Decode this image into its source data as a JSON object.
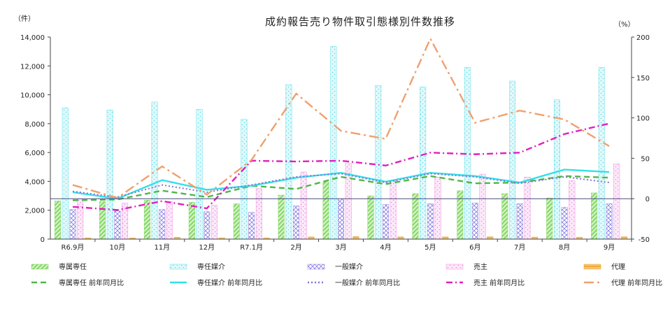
{
  "chart_data": {
    "type": "bar+line",
    "title": "成約報告売り物件取引態様別件数推移",
    "left_axis_unit": "（件）",
    "right_axis_unit": "（%）",
    "categories": [
      "R6.9月",
      "10月",
      "11月",
      "12月",
      "R7.1月",
      "2月",
      "3月",
      "4月",
      "5月",
      "6月",
      "7月",
      "8月",
      "9月"
    ],
    "y_left": {
      "ylim": [
        0,
        14000
      ],
      "ticks": [
        0,
        2000,
        4000,
        6000,
        8000,
        10000,
        12000,
        14000
      ],
      "tick_labels": [
        "0",
        "2,000",
        "4,000",
        "6,000",
        "8,000",
        "10,000",
        "12,000",
        "14,000"
      ]
    },
    "y_right": {
      "ylim": [
        -50,
        200
      ],
      "ticks": [
        -50,
        0,
        50,
        100,
        150,
        200
      ],
      "tick_labels": [
        "-50",
        "0",
        "50",
        "100",
        "150",
        "200"
      ]
    },
    "bar_series": [
      {
        "name": "専属専任",
        "color": "#7fd65c",
        "pattern": "diag",
        "values": [
          2650,
          2600,
          2700,
          2550,
          2450,
          3050,
          3950,
          3000,
          3150,
          3350,
          3150,
          2850,
          3200
        ]
      },
      {
        "name": "専任媒介",
        "color": "#5fdde8",
        "pattern": "dots",
        "values": [
          9100,
          8950,
          9500,
          9000,
          8300,
          10700,
          13350,
          10650,
          10550,
          11900,
          10950,
          9650,
          11900
        ]
      },
      {
        "name": "一般媒介",
        "color": "#8a7fe0",
        "pattern": "cross",
        "values": [
          2050,
          1950,
          2050,
          1900,
          1850,
          2300,
          2800,
          2400,
          2450,
          2500,
          2450,
          2200,
          2450
        ]
      },
      {
        "name": "売主",
        "color": "#f08ce0",
        "pattern": "dots",
        "values": [
          2800,
          2500,
          2600,
          2350,
          3500,
          4650,
          5250,
          4050,
          4300,
          4500,
          4300,
          4050,
          5200
        ]
      },
      {
        "name": "代理",
        "color": "#f0a020",
        "pattern": "hatch",
        "values": [
          90,
          80,
          130,
          90,
          90,
          150,
          170,
          150,
          150,
          160,
          140,
          130,
          160
        ]
      }
    ],
    "line_series": [
      {
        "name": "専属専任 前年同月比",
        "color": "#4db848",
        "style": "dash",
        "values": [
          -2,
          -1,
          10,
          2,
          16,
          12,
          27,
          18,
          28,
          19,
          20,
          28,
          26
        ]
      },
      {
        "name": "専任媒介 前年同月比",
        "color": "#33e0e8",
        "style": "solid",
        "values": [
          8,
          0,
          23,
          11,
          16,
          26,
          32,
          21,
          32,
          28,
          20,
          36,
          33
        ]
      },
      {
        "name": "一般媒介 前年同月比",
        "color": "#8a70d8",
        "style": "dot",
        "values": [
          9,
          2,
          17,
          8,
          17,
          27,
          31,
          20,
          31,
          27,
          19,
          27,
          20
        ]
      },
      {
        "name": "売主 前年同月比",
        "color": "#e020c0",
        "style": "dashdot",
        "values": [
          -10,
          -14,
          -3,
          -12,
          47,
          46,
          47,
          41,
          57,
          55,
          57,
          80,
          93
        ]
      },
      {
        "name": "代理 前年同月比",
        "color": "#f0a070",
        "style": "longdashdot",
        "values": [
          17,
          1,
          40,
          5,
          48,
          130,
          84,
          74,
          198,
          94,
          109,
          98,
          65
        ]
      }
    ]
  }
}
